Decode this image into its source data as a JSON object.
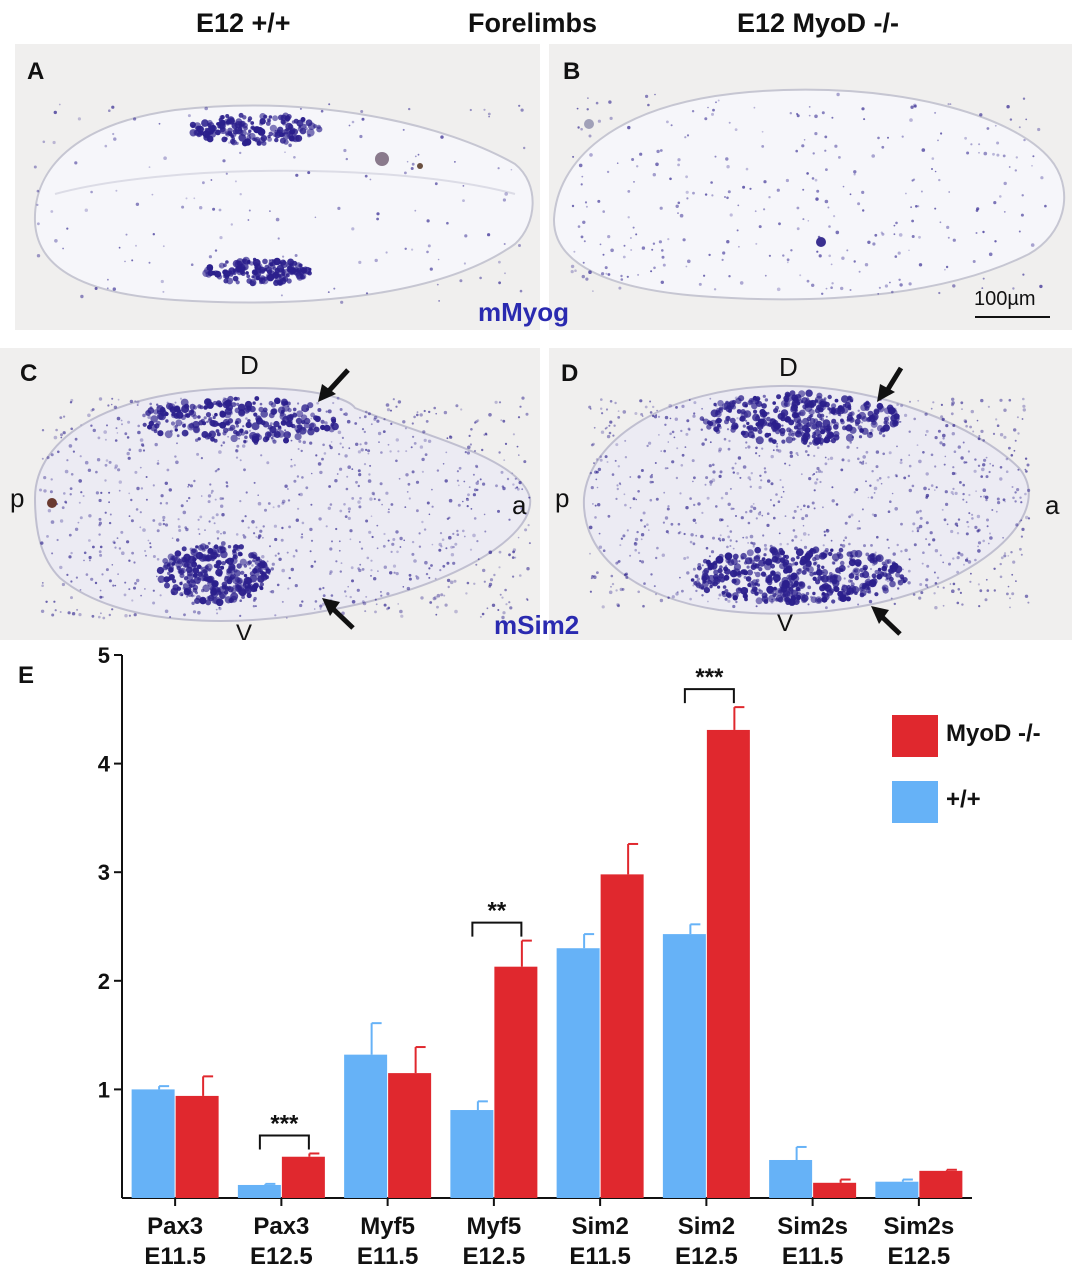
{
  "header": {
    "left": "E12 +/+",
    "center": "Forelimbs",
    "right": "E12 MyoD -/-"
  },
  "panels": {
    "A": {
      "letter": "A"
    },
    "B": {
      "letter": "B",
      "scale_label": "100µm"
    },
    "C": {
      "letter": "C",
      "dorsal": "D",
      "ventral": "V",
      "posterior": "p",
      "anterior": "a"
    },
    "D": {
      "letter": "D",
      "dorsal": "D",
      "ventral": "V",
      "posterior": "p",
      "anterior": "a"
    },
    "probe_top": "mMyog",
    "probe_bottom": "mSim2"
  },
  "colors": {
    "wildtype": "#66b2f7",
    "mutant": "#e0282e",
    "stain": "#2b1f8c",
    "probe_text": "#2a2ab0"
  },
  "chart_data": {
    "type": "bar",
    "panel_letter": "E",
    "title": "",
    "xlabel": "",
    "ylabel": "",
    "ylim": [
      0,
      5
    ],
    "yticks": [
      1,
      2,
      3,
      4,
      5
    ],
    "categories": [
      [
        "Pax3",
        "E11.5"
      ],
      [
        "Pax3",
        "E12.5"
      ],
      [
        "Myf5",
        "E11.5"
      ],
      [
        "Myf5",
        "E12.5"
      ],
      [
        "Sim2",
        "E11.5"
      ],
      [
        "Sim2",
        "E12.5"
      ],
      [
        "Sim2s",
        "E11.5"
      ],
      [
        "Sim2s",
        "E12.5"
      ]
    ],
    "series": [
      {
        "name": "+/+",
        "color": "#66b2f7",
        "values": [
          1.0,
          0.12,
          1.32,
          0.81,
          2.3,
          2.43,
          0.35,
          0.15
        ],
        "errors": [
          0.03,
          0.01,
          0.29,
          0.08,
          0.13,
          0.09,
          0.12,
          0.02
        ]
      },
      {
        "name": "MyoD -/-",
        "color": "#e0282e",
        "values": [
          0.94,
          0.38,
          1.15,
          2.13,
          2.98,
          4.31,
          0.14,
          0.25
        ],
        "errors": [
          0.18,
          0.03,
          0.24,
          0.24,
          0.28,
          0.21,
          0.03,
          0.01
        ]
      }
    ],
    "legend_order": [
      "MyoD -/-",
      "+/+"
    ],
    "legend_position": "top-right",
    "significance": [
      {
        "category_index": 1,
        "label": "***"
      },
      {
        "category_index": 3,
        "label": "**"
      },
      {
        "category_index": 5,
        "label": "***"
      }
    ]
  }
}
